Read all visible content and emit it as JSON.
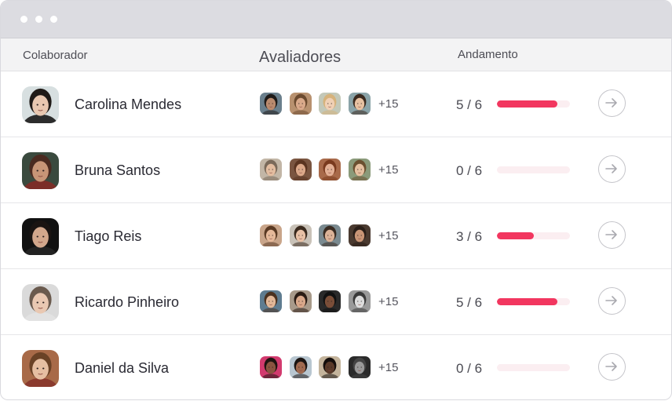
{
  "header": {
    "colaborador": "Colaborador",
    "avaliadores": "Avaliadores",
    "andamento": "Andamento"
  },
  "colors": {
    "accent": "#f2365f",
    "track": "#fbeef1",
    "titlebar": "#dcdce1"
  },
  "rows": [
    {
      "name": "Carolina Mendes",
      "avatar": {
        "bg": "#d7dfe0",
        "skin": "#e8c7b0",
        "hair": "#1f1a17",
        "shirt": "#2c2c2c"
      },
      "evaluators": [
        {
          "bg": "#6a7f8c",
          "skin": "#b98a6e",
          "hair": "#1e1a18"
        },
        {
          "bg": "#b8916f",
          "skin": "#d9a98a",
          "hair": "#6b4a2f"
        },
        {
          "bg": "#c3c8b8",
          "skin": "#f0d0b5",
          "hair": "#d6b27b"
        },
        {
          "bg": "#8aa3a8",
          "skin": "#e7c1a2",
          "hair": "#3b2a1f"
        }
      ],
      "extra": "+15",
      "progress_text": "5 / 6",
      "progress": 0.8333
    },
    {
      "name": "Bruna Santos",
      "avatar": {
        "bg": "#3a4a3e",
        "skin": "#c79577",
        "hair": "#4a2a20",
        "shirt": "#7b2e28"
      },
      "evaluators": [
        {
          "bg": "#c2b6a6",
          "skin": "#e3bda0",
          "hair": "#7a6a5a"
        },
        {
          "bg": "#7a5540",
          "skin": "#dba889",
          "hair": "#5a3420"
        },
        {
          "bg": "#a86a4a",
          "skin": "#e3b095",
          "hair": "#7a3a1e"
        },
        {
          "bg": "#8a9a7a",
          "skin": "#e5c0a0",
          "hair": "#6a5030"
        }
      ],
      "extra": "+15",
      "progress_text": "0 / 6",
      "progress": 0
    },
    {
      "name": "Tiago Reis",
      "avatar": {
        "bg": "#111111",
        "skin": "#d2a78c",
        "hair": "#1a1412",
        "shirt": "#222222"
      },
      "evaluators": [
        {
          "bg": "#c9a58a",
          "skin": "#e6b99a",
          "hair": "#5a3a24"
        },
        {
          "bg": "#c9c2b8",
          "skin": "#e8c1a6",
          "hair": "#3a2a1e"
        },
        {
          "bg": "#7a8a90",
          "skin": "#dcb398",
          "hair": "#3a2c22"
        },
        {
          "bg": "#4a3a30",
          "skin": "#c99576",
          "hair": "#2a1e18"
        }
      ],
      "extra": "+15",
      "progress_text": "3 / 6",
      "progress": 0.5
    },
    {
      "name": "Ricardo Pinheiro",
      "avatar": {
        "bg": "#dadada",
        "skin": "#e9c8b2",
        "hair": "#6a5a4e",
        "shirt": "#e2e2e2"
      },
      "evaluators": [
        {
          "bg": "#5e7c90",
          "skin": "#e2b898",
          "hair": "#4a3220"
        },
        {
          "bg": "#a89a8a",
          "skin": "#d9a88a",
          "hair": "#2a1c14"
        },
        {
          "bg": "#2a2a2a",
          "skin": "#7a4e38",
          "hair": "#111111"
        },
        {
          "bg": "#9a9a9a",
          "skin": "#dddddd",
          "hair": "#3a3a3a"
        }
      ],
      "extra": "+15",
      "progress_text": "5 / 6",
      "progress": 0.8333
    },
    {
      "name": "Daniel da Silva",
      "avatar": {
        "bg": "#a86a48",
        "skin": "#e6bfa2",
        "hair": "#6a4226",
        "shirt": "#8a3a2e"
      },
      "evaluators": [
        {
          "bg": "#d23a6e",
          "skin": "#8a5440",
          "hair": "#1e1410"
        },
        {
          "bg": "#b8c6d0",
          "skin": "#a06a50",
          "hair": "#1a1412"
        },
        {
          "bg": "#c4b49c",
          "skin": "#5a3a2a",
          "hair": "#140e0c"
        },
        {
          "bg": "#2a2a2a",
          "skin": "#9a9a9a",
          "hair": "#444444"
        }
      ],
      "extra": "+15",
      "progress_text": "0 / 6",
      "progress": 0
    }
  ]
}
